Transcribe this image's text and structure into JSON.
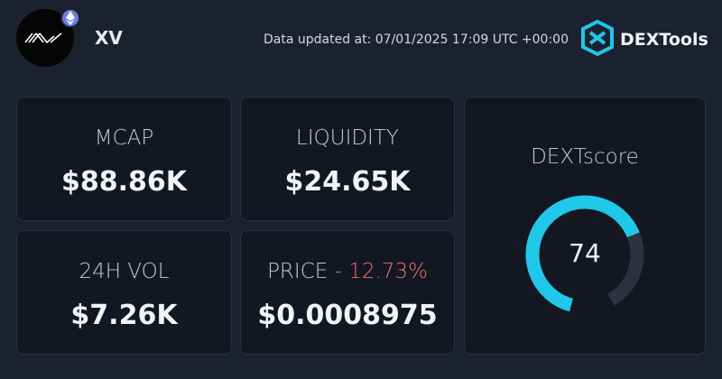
{
  "header": {
    "token": "XV",
    "updated": "Data updated at: 07/01/2025 17:09 UTC +00:00",
    "brand": "DEXTools"
  },
  "cards": [
    {
      "label": "MCAP",
      "value": "$88.86K"
    },
    {
      "label": "LIQUIDITY",
      "value": "$24.65K"
    },
    {
      "label": "24H VOL",
      "value": "$7.26K"
    },
    {
      "label": "PRICE",
      "change": "- 12.73%",
      "value": "$0.0008975"
    }
  ],
  "score": {
    "label": "DEXTscore",
    "value": 74,
    "range": [
      0,
      100
    ]
  }
}
